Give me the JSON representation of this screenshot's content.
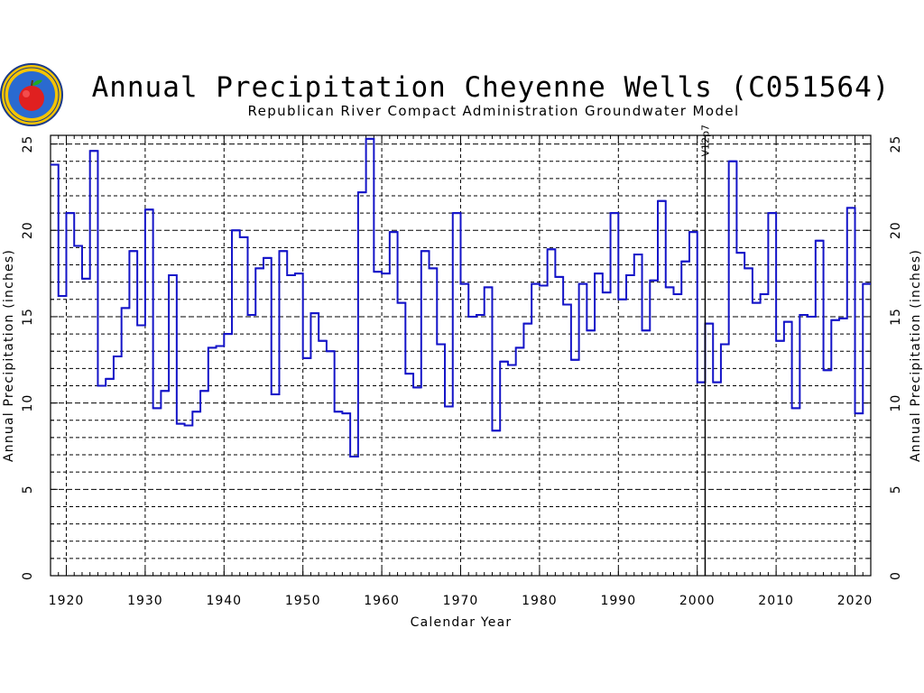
{
  "page": {
    "title": "Annual Precipitation Cheyenne Wells (C051564)",
    "subtitle": "Republican River Compact Administration Groundwater Model"
  },
  "logo": {
    "icon": "apple-seal-logo"
  },
  "colors": {
    "line": "#1414c8",
    "grid": "#000000",
    "axis": "#000000",
    "background": "#ffffff"
  },
  "chart_data": {
    "type": "step",
    "title": "Annual Precipitation Cheyenne Wells (C051564)",
    "subtitle": "Republican River Compact Administration Groundwater Model",
    "xlabel": "Calendar Year",
    "ylabel": "Annual Precipitation (inches)",
    "ylabel_right": "Annual Precipitation (inches)",
    "xlim": [
      1918,
      2022
    ],
    "ylim": [
      0,
      25.5
    ],
    "xticks": [
      "1920",
      "1930",
      "1940",
      "1950",
      "1960",
      "1970",
      "1980",
      "1990",
      "2000",
      "2010",
      "2020"
    ],
    "yticks": [
      "0",
      "5",
      "10",
      "15",
      "20",
      "25"
    ],
    "grid": true,
    "annotation": {
      "text": "V12p7",
      "x": 2001
    },
    "series": [
      {
        "x": [
          1918,
          1919,
          1920,
          1921,
          1922,
          1923,
          1924,
          1925,
          1926,
          1927,
          1928,
          1929,
          1930,
          1931,
          1932,
          1933,
          1934,
          1935,
          1936,
          1937,
          1938,
          1939,
          1940,
          1941,
          1942,
          1943,
          1944,
          1945,
          1946,
          1947,
          1948,
          1949,
          1950,
          1951,
          1952,
          1953,
          1954,
          1955,
          1956,
          1957,
          1958,
          1959,
          1960,
          1961,
          1962,
          1963,
          1964,
          1965,
          1966,
          1967,
          1968,
          1969,
          1970,
          1971,
          1972,
          1973,
          1974,
          1975,
          1976,
          1977,
          1978,
          1979,
          1980,
          1981,
          1982,
          1983,
          1984,
          1985,
          1986,
          1987,
          1988,
          1989,
          1990,
          1991,
          1992,
          1993,
          1994,
          1995,
          1996,
          1997,
          1998,
          1999,
          2000,
          2001,
          2002,
          2003,
          2004,
          2005,
          2006,
          2007,
          2008,
          2009,
          2010,
          2011,
          2012,
          2013,
          2014,
          2015,
          2016,
          2017,
          2018,
          2019,
          2020,
          2021
        ],
        "values": [
          23.8,
          16.2,
          21.0,
          19.1,
          17.2,
          24.6,
          11.0,
          11.4,
          12.7,
          15.5,
          18.8,
          14.5,
          21.2,
          9.7,
          10.7,
          17.4,
          8.8,
          8.7,
          9.5,
          10.7,
          13.2,
          13.3,
          14.0,
          20.0,
          19.6,
          15.1,
          17.8,
          18.4,
          10.5,
          18.8,
          17.4,
          17.5,
          12.6,
          15.2,
          13.6,
          13.0,
          9.5,
          9.4,
          6.9,
          22.2,
          25.3,
          17.6,
          17.5,
          19.9,
          15.8,
          11.7,
          10.9,
          18.8,
          17.8,
          13.4,
          9.8,
          21.0,
          16.9,
          15.0,
          15.1,
          16.7,
          8.4,
          12.4,
          12.2,
          13.2,
          14.6,
          16.9,
          16.8,
          18.9,
          17.3,
          15.7,
          12.5,
          16.9,
          14.2,
          17.5,
          16.4,
          21.0,
          16.0,
          17.4,
          18.6,
          14.2,
          17.1,
          21.7,
          16.7,
          16.3,
          18.2,
          19.9,
          11.2,
          14.6,
          11.2,
          13.4,
          24.0,
          18.7,
          17.8,
          15.8,
          16.3,
          21.0,
          13.6,
          14.7,
          9.7,
          15.1,
          15.0,
          19.4,
          11.9,
          14.8,
          14.9,
          21.3,
          9.4,
          16.9
        ]
      }
    ]
  }
}
